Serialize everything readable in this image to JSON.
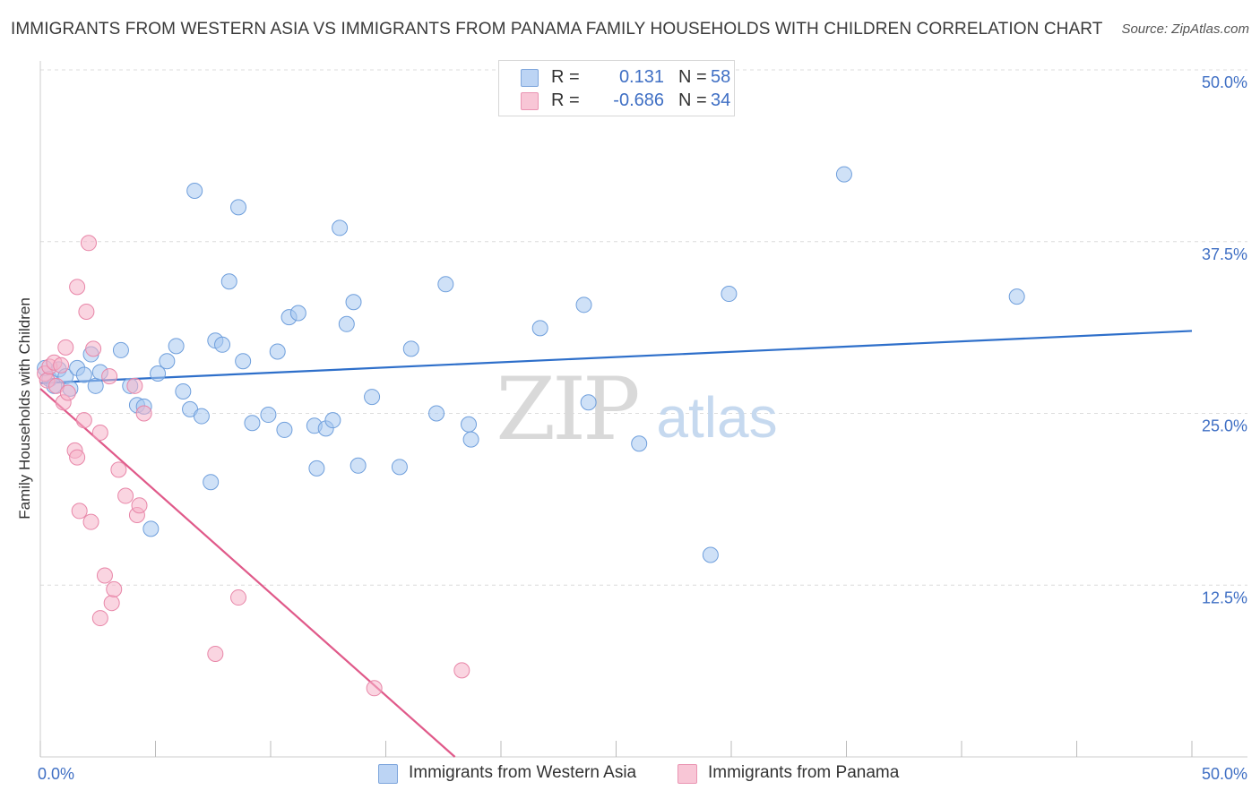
{
  "title": "IMMIGRANTS FROM WESTERN ASIA VS IMMIGRANTS FROM PANAMA FAMILY HOUSEHOLDS WITH CHILDREN CORRELATION CHART",
  "source": "Source: ZipAtlas.com",
  "watermark": {
    "zip": "ZIP",
    "atlas": "atlas"
  },
  "legend": {
    "r_label": "R =",
    "n_label": "N =",
    "series": [
      {
        "r": "0.131",
        "n": "58"
      },
      {
        "r": "-0.686",
        "n": "34"
      }
    ]
  },
  "chart_data": {
    "type": "scatter",
    "title": "IMMIGRANTS FROM WESTERN ASIA VS IMMIGRANTS FROM PANAMA FAMILY HOUSEHOLDS WITH CHILDREN CORRELATION CHART",
    "xlabel": "",
    "ylabel": "Family Households with Children",
    "xlim": [
      0,
      50
    ],
    "ylim": [
      0,
      50
    ],
    "x_tick_labels": [
      "0.0%",
      "50.0%"
    ],
    "y_ticks": [
      12.5,
      25.0,
      37.5,
      50.0
    ],
    "y_tick_labels": [
      "12.5%",
      "25.0%",
      "37.5%",
      "50.0%"
    ],
    "grid": "horizontal dashed",
    "legend_position": "top-center",
    "series": [
      {
        "name": "Immigrants from Western Asia",
        "color": "#a8c8f0",
        "edge_color": "#6f9fdc",
        "trend_color": "#2e6fca",
        "trend": {
          "x": [
            0,
            50
          ],
          "y": [
            27.2,
            31.0
          ]
        },
        "points": [
          [
            0.2,
            28.3
          ],
          [
            0.4,
            27.5
          ],
          [
            0.6,
            27.0
          ],
          [
            0.8,
            28.2
          ],
          [
            1.1,
            27.7
          ],
          [
            1.3,
            26.8
          ],
          [
            1.6,
            28.3
          ],
          [
            1.9,
            27.8
          ],
          [
            2.2,
            29.3
          ],
          [
            2.4,
            27.0
          ],
          [
            2.6,
            28.0
          ],
          [
            3.5,
            29.6
          ],
          [
            3.9,
            27.0
          ],
          [
            4.2,
            25.6
          ],
          [
            4.5,
            25.5
          ],
          [
            4.8,
            16.6
          ],
          [
            5.1,
            27.9
          ],
          [
            5.5,
            28.8
          ],
          [
            5.9,
            29.9
          ],
          [
            6.2,
            26.6
          ],
          [
            6.5,
            25.3
          ],
          [
            6.7,
            41.2
          ],
          [
            7.0,
            24.8
          ],
          [
            7.4,
            20.0
          ],
          [
            7.6,
            30.3
          ],
          [
            7.9,
            30.0
          ],
          [
            8.2,
            34.6
          ],
          [
            8.6,
            40.0
          ],
          [
            8.8,
            28.8
          ],
          [
            9.2,
            24.3
          ],
          [
            9.9,
            24.9
          ],
          [
            10.3,
            29.5
          ],
          [
            10.6,
            23.8
          ],
          [
            10.8,
            32.0
          ],
          [
            11.2,
            32.3
          ],
          [
            11.9,
            24.1
          ],
          [
            12.0,
            21.0
          ],
          [
            12.4,
            23.9
          ],
          [
            12.7,
            24.5
          ],
          [
            13.0,
            38.5
          ],
          [
            13.3,
            31.5
          ],
          [
            13.6,
            33.1
          ],
          [
            13.8,
            21.2
          ],
          [
            14.4,
            26.2
          ],
          [
            15.6,
            21.1
          ],
          [
            16.1,
            29.7
          ],
          [
            17.2,
            25.0
          ],
          [
            17.6,
            34.4
          ],
          [
            18.6,
            24.2
          ],
          [
            18.7,
            23.1
          ],
          [
            21.7,
            31.2
          ],
          [
            23.6,
            32.9
          ],
          [
            23.8,
            25.8
          ],
          [
            26.0,
            22.8
          ],
          [
            29.1,
            14.7
          ],
          [
            29.9,
            33.7
          ],
          [
            34.9,
            42.4
          ],
          [
            42.4,
            33.5
          ]
        ]
      },
      {
        "name": "Immigrants from Panama",
        "color": "#f5b3c9",
        "edge_color": "#e886a8",
        "trend_color": "#e05a8a",
        "trend": {
          "x": [
            0,
            18.0
          ],
          "y": [
            26.8,
            0
          ]
        },
        "points": [
          [
            0.2,
            27.9
          ],
          [
            0.3,
            27.4
          ],
          [
            0.4,
            28.4
          ],
          [
            0.6,
            28.7
          ],
          [
            0.7,
            27.0
          ],
          [
            0.9,
            28.5
          ],
          [
            1.0,
            25.8
          ],
          [
            1.1,
            29.8
          ],
          [
            1.2,
            26.5
          ],
          [
            1.5,
            22.3
          ],
          [
            1.6,
            21.8
          ],
          [
            1.6,
            34.2
          ],
          [
            1.7,
            17.9
          ],
          [
            1.9,
            24.5
          ],
          [
            2.0,
            32.4
          ],
          [
            2.1,
            37.4
          ],
          [
            2.2,
            17.1
          ],
          [
            2.3,
            29.7
          ],
          [
            2.6,
            10.1
          ],
          [
            2.6,
            23.6
          ],
          [
            2.8,
            13.2
          ],
          [
            3.0,
            27.7
          ],
          [
            3.1,
            11.2
          ],
          [
            3.2,
            12.2
          ],
          [
            3.4,
            20.9
          ],
          [
            3.7,
            19.0
          ],
          [
            4.1,
            27.0
          ],
          [
            4.2,
            17.6
          ],
          [
            4.3,
            18.3
          ],
          [
            4.5,
            25.0
          ],
          [
            7.6,
            7.5
          ],
          [
            8.6,
            11.6
          ],
          [
            14.5,
            5.0
          ],
          [
            18.3,
            6.3
          ]
        ]
      }
    ]
  },
  "bottom_legend": [
    "Immigrants from Western Asia",
    "Immigrants from Panama"
  ]
}
